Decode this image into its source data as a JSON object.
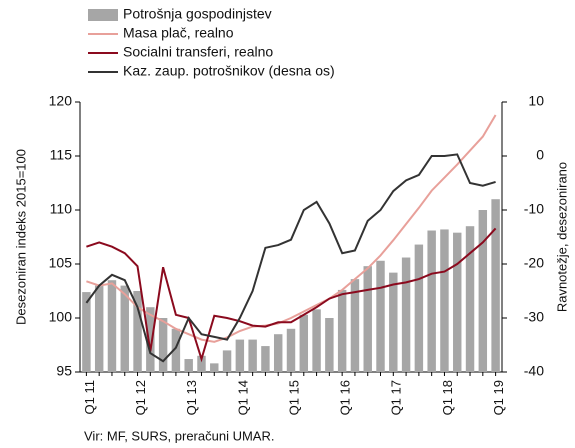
{
  "chart_data": {
    "type": "bar_line",
    "categories": [
      "Q1 11",
      null,
      null,
      null,
      "Q1 12",
      null,
      null,
      null,
      "Q1 13",
      null,
      null,
      null,
      "Q1 14",
      null,
      null,
      null,
      "Q1 15",
      null,
      null,
      null,
      "Q1 16",
      null,
      null,
      null,
      "Q1 17",
      null,
      null,
      null,
      "Q1 18",
      null,
      null,
      null,
      "Q1 19"
    ],
    "series": [
      {
        "name": "Potrošnja gospodinjstev",
        "kind": "bar",
        "color": "#a6a6a6",
        "values": [
          102.4,
          103.0,
          103.5,
          103.0,
          102.5,
          101.0,
          100.0,
          99.0,
          96.2,
          96.5,
          95.8,
          97.0,
          98.0,
          98.0,
          97.4,
          98.5,
          99.0,
          100.3,
          100.8,
          100.0,
          102.6,
          103.6,
          104.8,
          105.3,
          104.2,
          105.6,
          106.8,
          108.1,
          108.2,
          107.9,
          108.5,
          110.0,
          111.0
        ]
      },
      {
        "name": "Masa plač, realno",
        "kind": "line",
        "color": "#e8a09a",
        "values": [
          103.4,
          103.0,
          103.2,
          102.2,
          101.0,
          100.3,
          99.7,
          99.0,
          98.5,
          98.0,
          97.8,
          98.2,
          98.8,
          99.2,
          99.3,
          99.5,
          100.0,
          100.6,
          101.2,
          101.8,
          102.6,
          103.6,
          104.6,
          105.8,
          107.2,
          108.7,
          110.2,
          111.8,
          113.0,
          114.2,
          115.5,
          116.8,
          118.8
        ]
      },
      {
        "name": "Socialni transferi, realno",
        "kind": "line",
        "color": "#8b0a1e",
        "values": [
          106.6,
          107.0,
          106.6,
          106.0,
          104.8,
          96.9,
          104.7,
          100.3,
          100.0,
          96.2,
          100.2,
          100.0,
          99.7,
          99.3,
          99.2,
          99.6,
          99.6,
          100.3,
          101.0,
          101.8,
          102.2,
          102.4,
          102.6,
          102.8,
          103.1,
          103.3,
          103.6,
          104.1,
          104.3,
          105.0,
          106.0,
          107.0,
          108.3
        ]
      },
      {
        "name": "Kaz. zaup. potrošnikov (desna os)",
        "kind": "line",
        "axis": "y2",
        "color": "#333333",
        "values": [
          -27.2,
          -24,
          -22,
          -23,
          -28,
          -36.5,
          -38,
          -35.5,
          -30,
          -33,
          -33.5,
          -34,
          -30,
          -25,
          -17,
          -16.5,
          -15.5,
          -10,
          -8.5,
          -12.5,
          -18,
          -17.5,
          -12,
          -10,
          -6.5,
          -4.5,
          -3.5,
          0,
          0,
          0.3,
          -5,
          -5.5,
          -4.8
        ]
      }
    ],
    "ylim": [
      95,
      120
    ],
    "yticks": [
      95,
      100,
      105,
      110,
      115,
      120
    ],
    "y2lim": [
      -40,
      10
    ],
    "y2ticks": [
      -40,
      -30,
      -20,
      -10,
      0,
      10
    ],
    "ylabel": "Desezoniran indeks 2015=100",
    "y2label": "Ravnotežje, desezonirano",
    "source": "Vir: MF, SURS, preračuni UMAR.",
    "legend": "top-left",
    "grid": false
  }
}
